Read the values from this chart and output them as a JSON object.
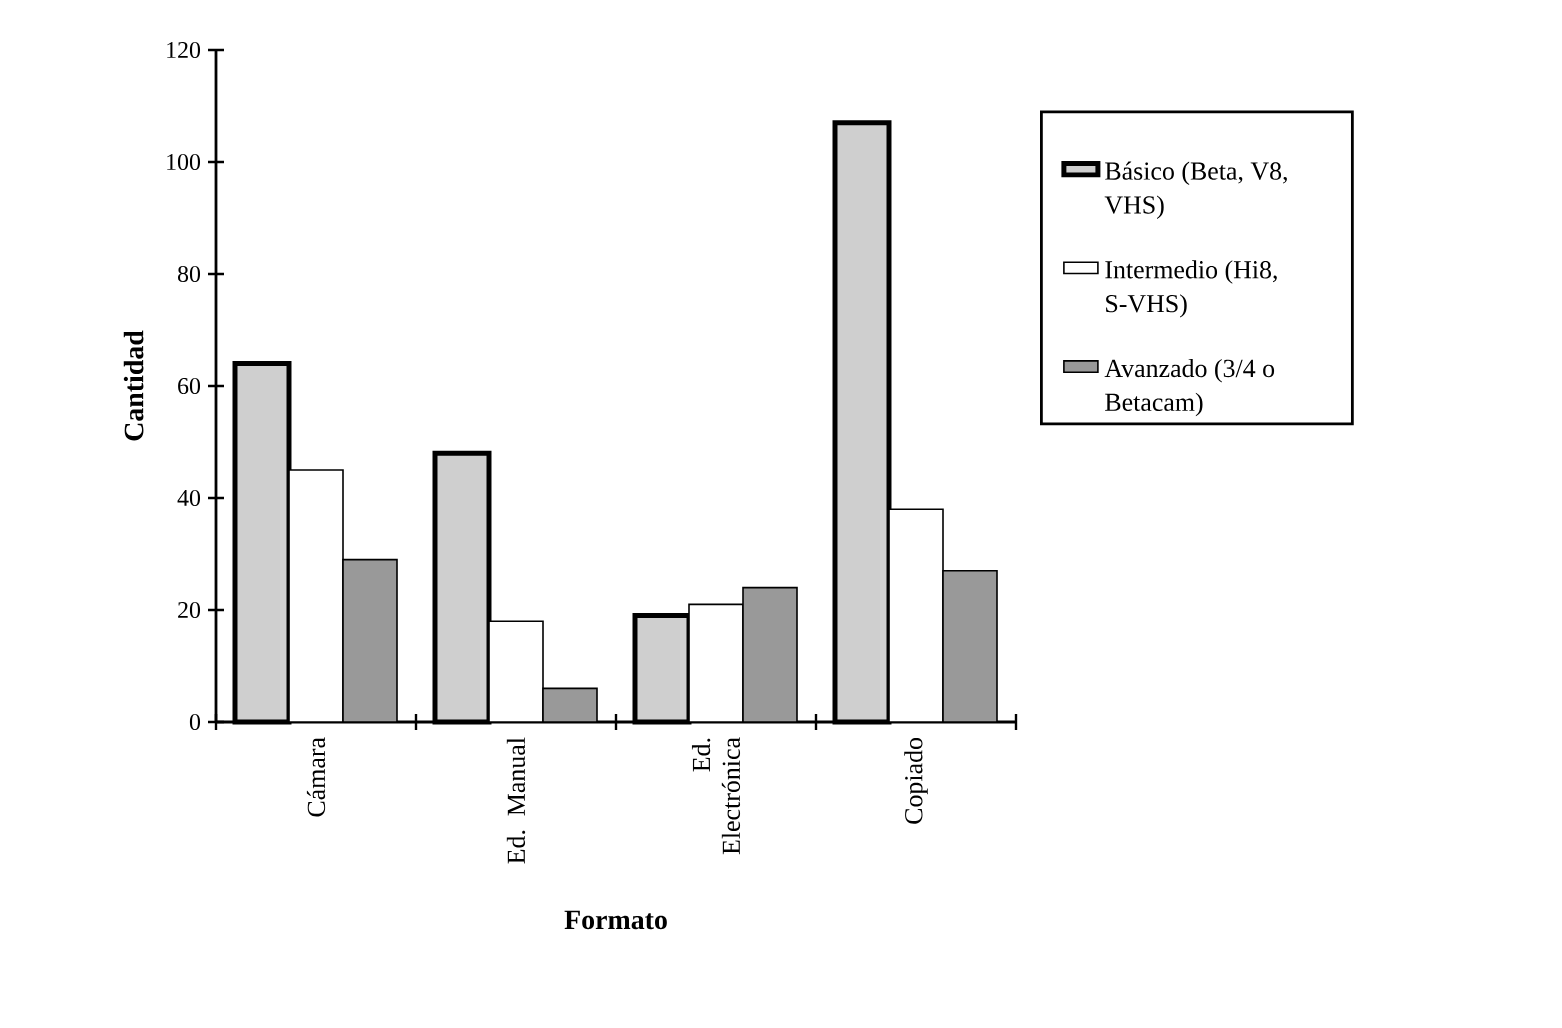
{
  "chart_data": {
    "type": "bar",
    "xlabel": "Formato",
    "ylabel": "Cantidad",
    "categories": [
      "Cámara",
      "Ed. Manual",
      "Ed. Electrónica",
      "Copiado"
    ],
    "series": [
      {
        "name": "Básico (Beta, V8, VHS)",
        "color": "#cfcfcf",
        "values": [
          64,
          48,
          19,
          107
        ]
      },
      {
        "name": "Intermedio (Hi8, S-VHS)",
        "color": "#ffffff",
        "values": [
          45,
          18,
          21,
          38
        ]
      },
      {
        "name": "Avanzado (3/4 o Betacam)",
        "color": "#999999",
        "values": [
          29,
          6,
          24,
          27
        ]
      }
    ],
    "ylim": [
      0,
      120
    ],
    "yticks": [
      0,
      20,
      40,
      60,
      80,
      100,
      120
    ],
    "grid": false,
    "legend": "right"
  }
}
